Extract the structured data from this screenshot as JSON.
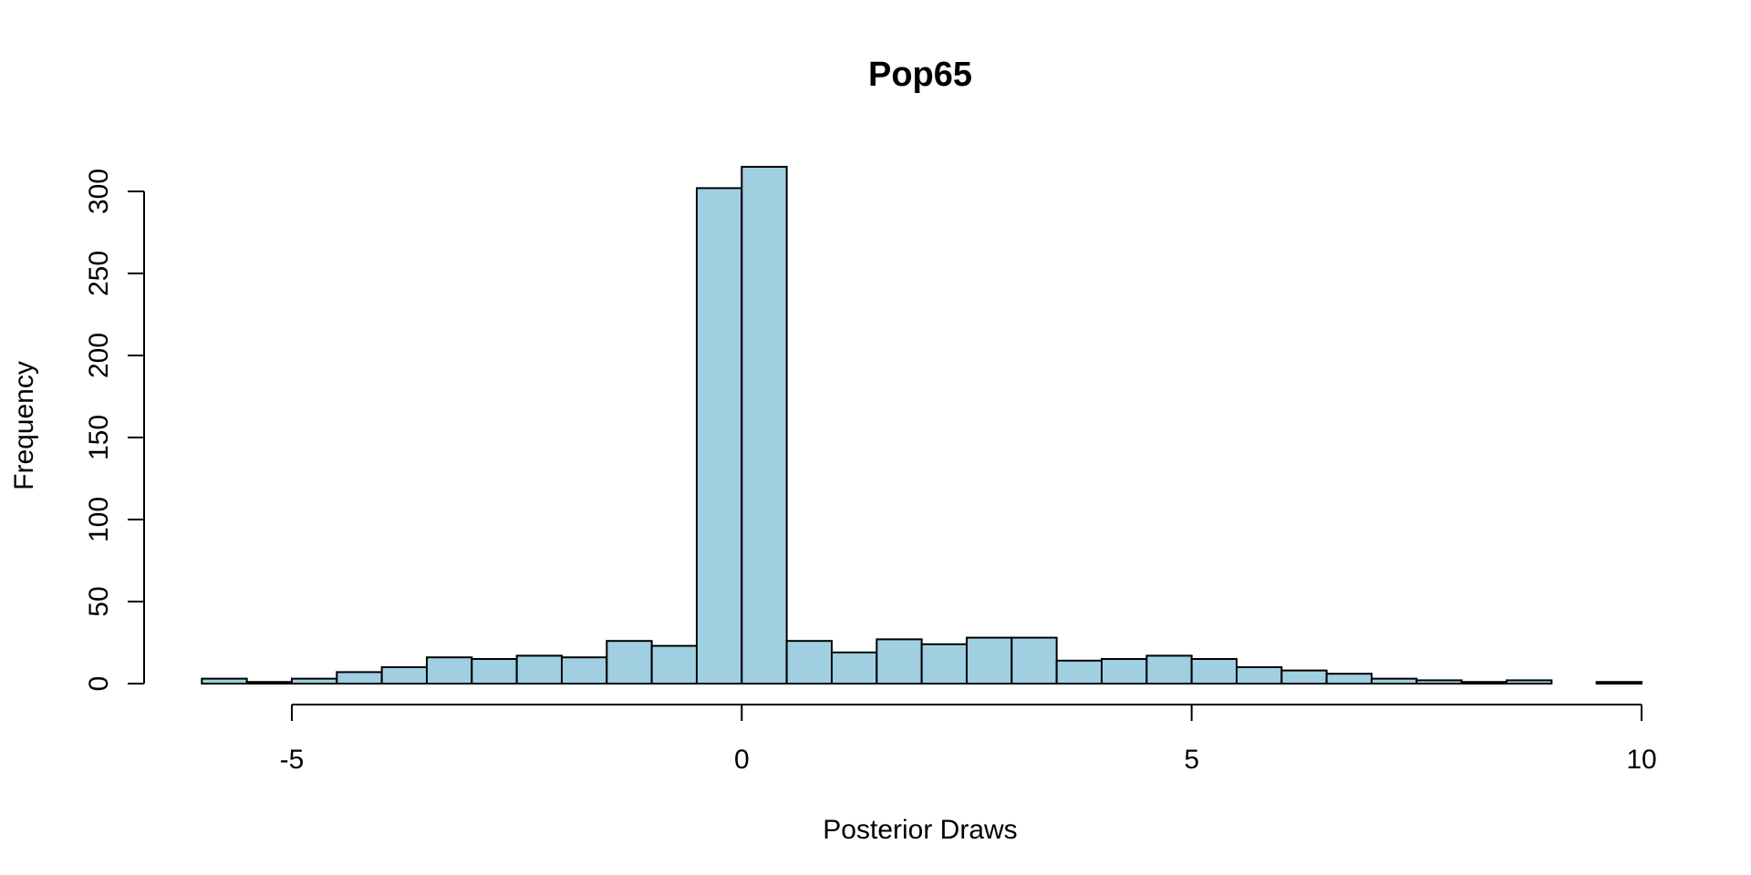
{
  "chart_data": {
    "type": "bar",
    "title": "Pop65",
    "xlabel": "Posterior Draws",
    "ylabel": "Frequency",
    "bar_color": "#a0cfe2",
    "border_color": "#000000",
    "bin_width": 0.5,
    "bin_start": -6,
    "values": [
      3,
      1,
      3,
      7,
      10,
      16,
      15,
      17,
      16,
      26,
      23,
      302,
      315,
      26,
      19,
      27,
      24,
      28,
      28,
      14,
      15,
      17,
      15,
      10,
      8,
      6,
      3,
      2,
      1,
      2,
      0,
      1
    ],
    "xlim": [
      -6.5,
      10
    ],
    "ylim": [
      0,
      315
    ],
    "x_ticks": [
      -5,
      0,
      5,
      10
    ],
    "x_tick_labels": [
      "-5",
      "0",
      "5",
      "10"
    ],
    "y_ticks": [
      0,
      50,
      100,
      150,
      200,
      250,
      300
    ],
    "y_tick_labels": [
      "0",
      "50",
      "100",
      "150",
      "200",
      "250",
      "300"
    ],
    "grid": false,
    "legend": "none"
  }
}
